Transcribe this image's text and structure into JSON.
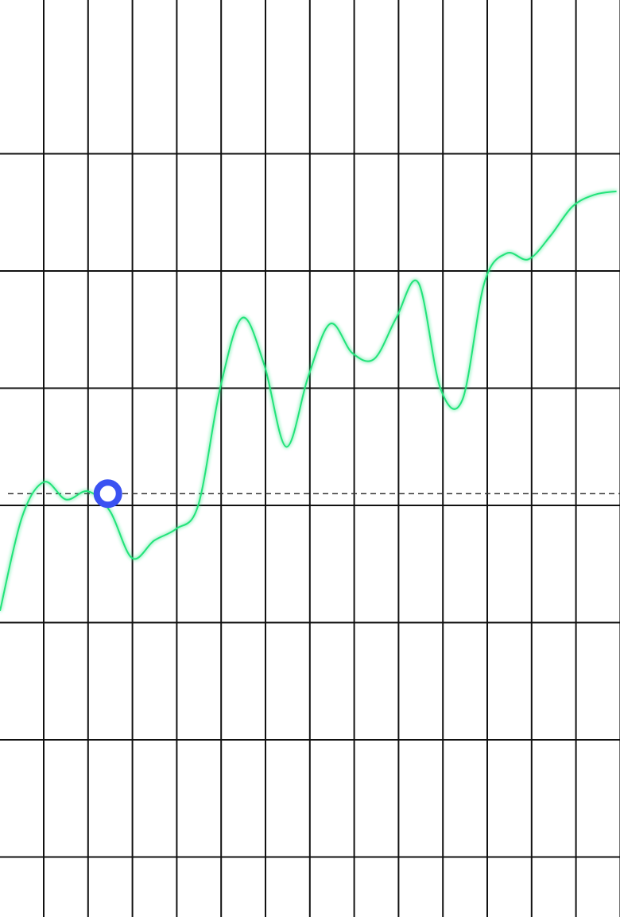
{
  "chart_data": {
    "type": "line",
    "grid": "on",
    "x": [
      0,
      1,
      2,
      3,
      4,
      5,
      6,
      7,
      8,
      9,
      10,
      11,
      12,
      13,
      14,
      15,
      16,
      17,
      18,
      19,
      20,
      21,
      22,
      23,
      24,
      25,
      26,
      27,
      28
    ],
    "series": [
      {
        "values": [
          -0.9,
          -0.1,
          0.2,
          0.05,
          0.12,
          -0.05,
          -0.45,
          -0.3,
          -0.2,
          0.0,
          1.0,
          1.6,
          1.2,
          0.5,
          1.1,
          1.55,
          1.3,
          1.25,
          1.6,
          1.9,
          1.0,
          0.9,
          1.9,
          2.15,
          2.1,
          2.3,
          2.55,
          2.65,
          2.68
        ]
      }
    ],
    "reference_line": 0.1,
    "marker": {
      "x": 4.9,
      "y": 0.1
    },
    "colors": {
      "line": "#22e37a",
      "grid": "#111111",
      "reference": "#333333",
      "marker": "#3a52f2"
    }
  }
}
